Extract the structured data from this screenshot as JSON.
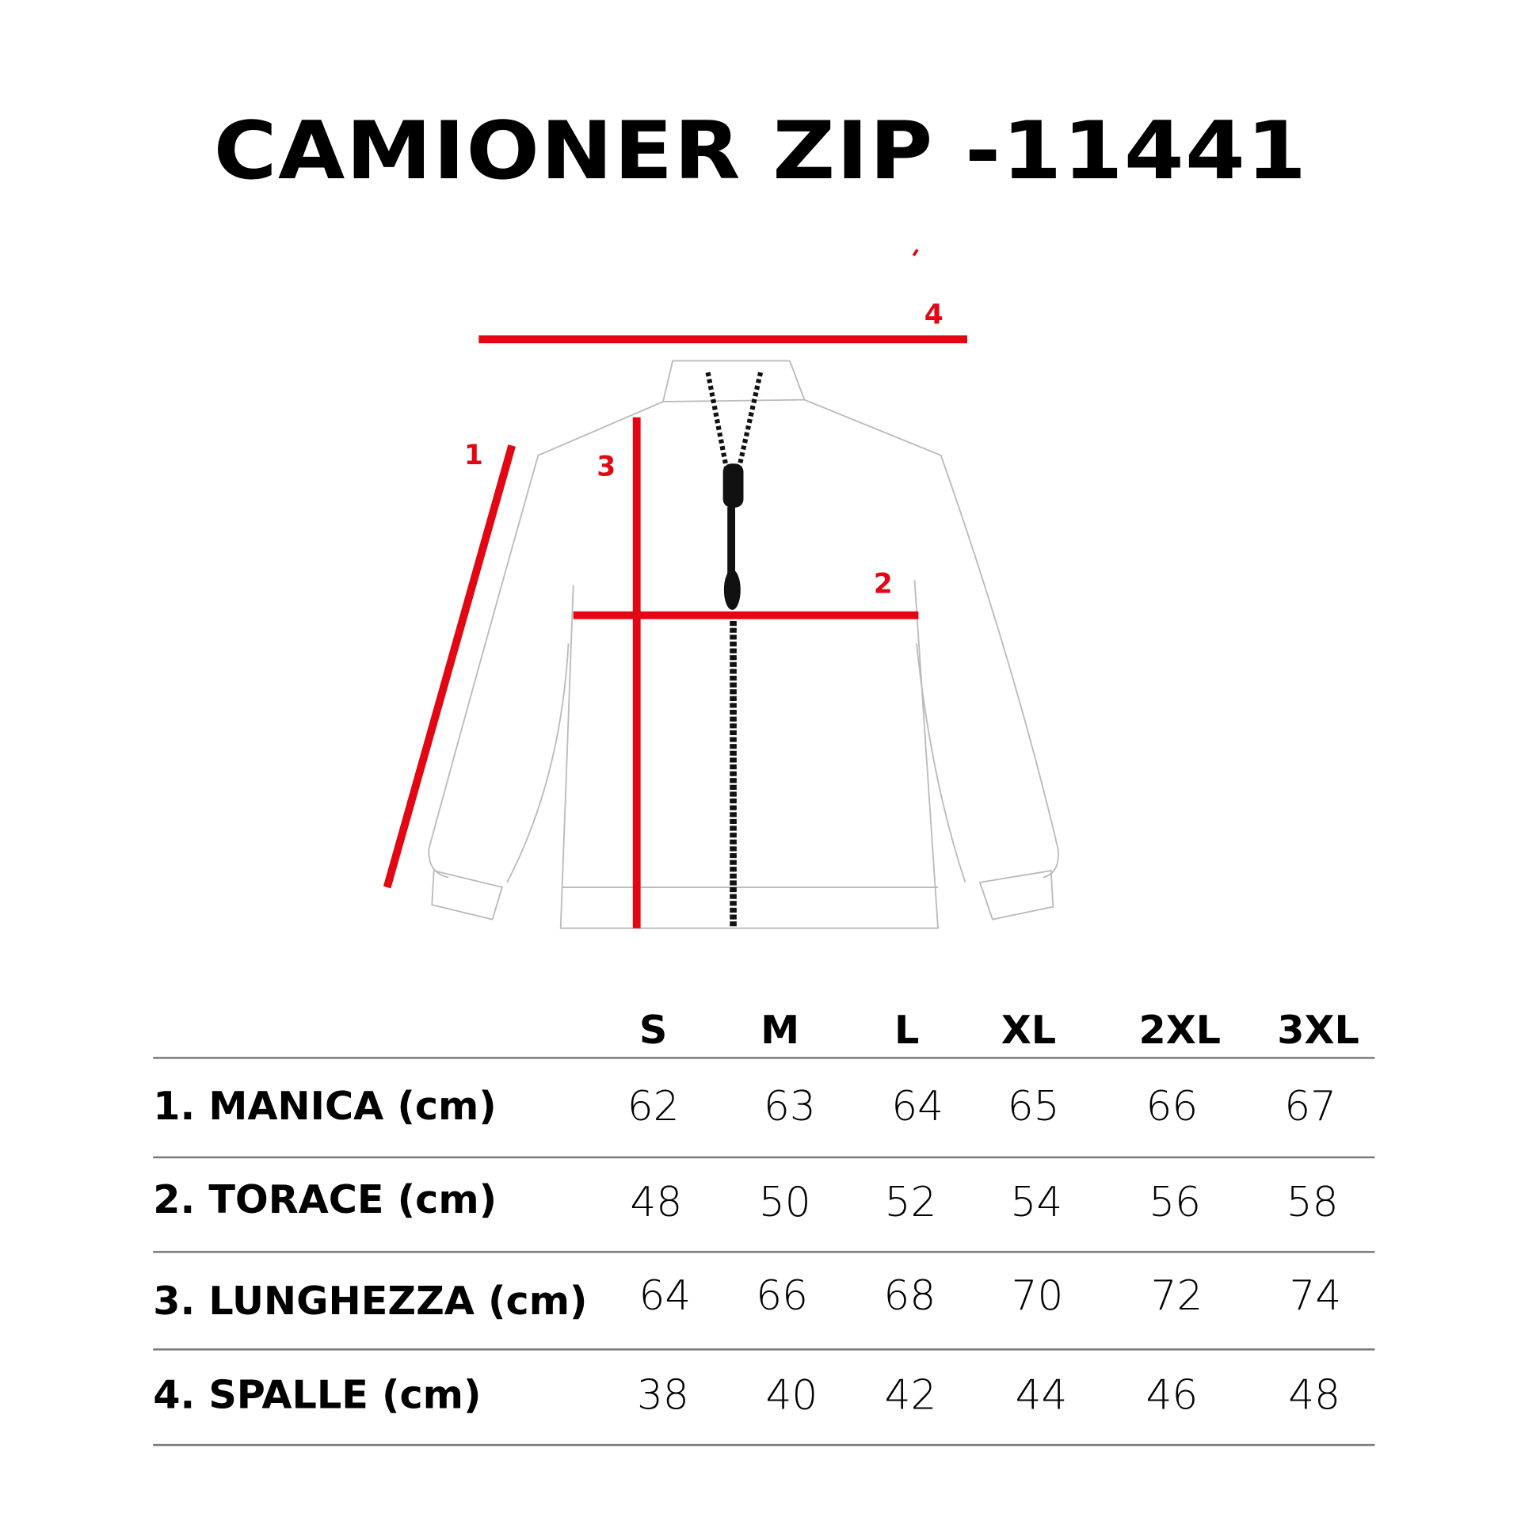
{
  "title": "CAMIONER ZIP -11441",
  "accent_color": "#e30613",
  "diagram_labels": [
    "1",
    "2",
    "3",
    "4"
  ],
  "table": {
    "sizes": [
      "S",
      "M",
      "L",
      "XL",
      "2XL",
      "3XL"
    ],
    "rows": [
      {
        "label": "1. MANICA (cm)",
        "values": [
          "62",
          "63",
          "64",
          "65",
          "66",
          "67"
        ]
      },
      {
        "label": "2. TORACE (cm)",
        "values": [
          "48",
          "50",
          "52",
          "54",
          "56",
          "58"
        ]
      },
      {
        "label": "3. LUNGHEZZA (cm)",
        "values": [
          "64",
          "66",
          "68",
          "70",
          "72",
          "74"
        ]
      },
      {
        "label": "4. SPALLE (cm)",
        "values": [
          "38",
          "40",
          "42",
          "44",
          "46",
          "48"
        ]
      }
    ]
  }
}
